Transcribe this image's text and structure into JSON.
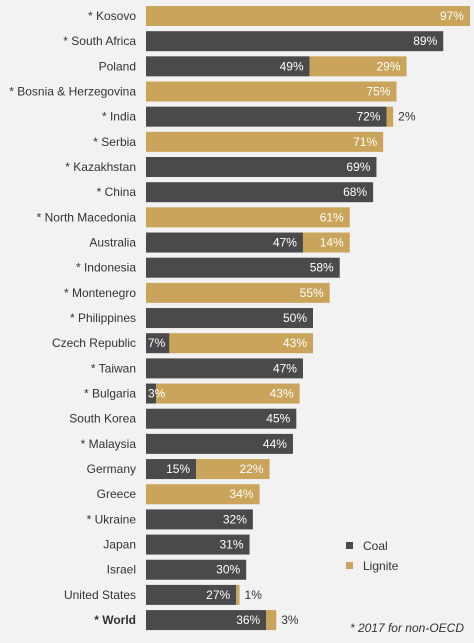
{
  "chart_data": {
    "type": "bar",
    "orientation": "horizontal",
    "stacked": true,
    "xlim": [
      0,
      97
    ],
    "grid": false,
    "legend_placement": "bottom-right",
    "categories": [
      "* Kosovo",
      "* South Africa",
      "Poland",
      "* Bosnia & Herzegovina",
      "* India",
      "* Serbia",
      "* Kazakhstan",
      "* China",
      "* North Macedonia",
      "Australia",
      "* Indonesia",
      "* Montenegro",
      "* Philippines",
      "Czech Republic",
      "* Taiwan",
      "* Bulgaria",
      "South Korea",
      "* Malaysia",
      "Germany",
      "Greece",
      "* Ukraine",
      "Japan",
      "Israel",
      "United States",
      "* World"
    ],
    "bold_categories": [
      "* World"
    ],
    "series": [
      {
        "name": "Coal",
        "color": "#4a4a4d",
        "values": [
          0,
          89,
          49,
          0,
          72,
          0,
          69,
          68,
          0,
          47,
          58,
          0,
          50,
          7,
          47,
          3,
          45,
          44,
          15,
          0,
          32,
          31,
          30,
          27,
          36
        ],
        "labels": [
          "",
          "89%",
          "49%",
          "",
          "72%",
          "",
          "69%",
          "68%",
          "",
          "47%",
          "58%",
          "",
          "50%",
          "7%",
          "47%",
          "3%",
          "45%",
          "44%",
          "15%",
          "",
          "32%",
          "31%",
          "30%",
          "27%",
          "36%"
        ]
      },
      {
        "name": "Lignite",
        "color": "#c9a45a",
        "values": [
          97,
          0,
          29,
          75,
          2,
          71,
          0,
          0,
          61,
          14,
          0,
          55,
          0,
          43,
          0,
          43,
          0,
          0,
          22,
          34,
          0,
          0,
          0,
          1,
          3
        ],
        "labels": [
          "97%",
          "",
          "29%",
          "75%",
          "2%",
          "71%",
          "",
          "",
          "61%",
          "14%",
          "",
          "55%",
          "",
          "43%",
          "",
          "43%",
          "",
          "",
          "22%",
          "34%",
          "",
          "",
          "",
          "1%",
          "3%"
        ]
      }
    ],
    "footnote": "* 2017 for non-OECD"
  }
}
